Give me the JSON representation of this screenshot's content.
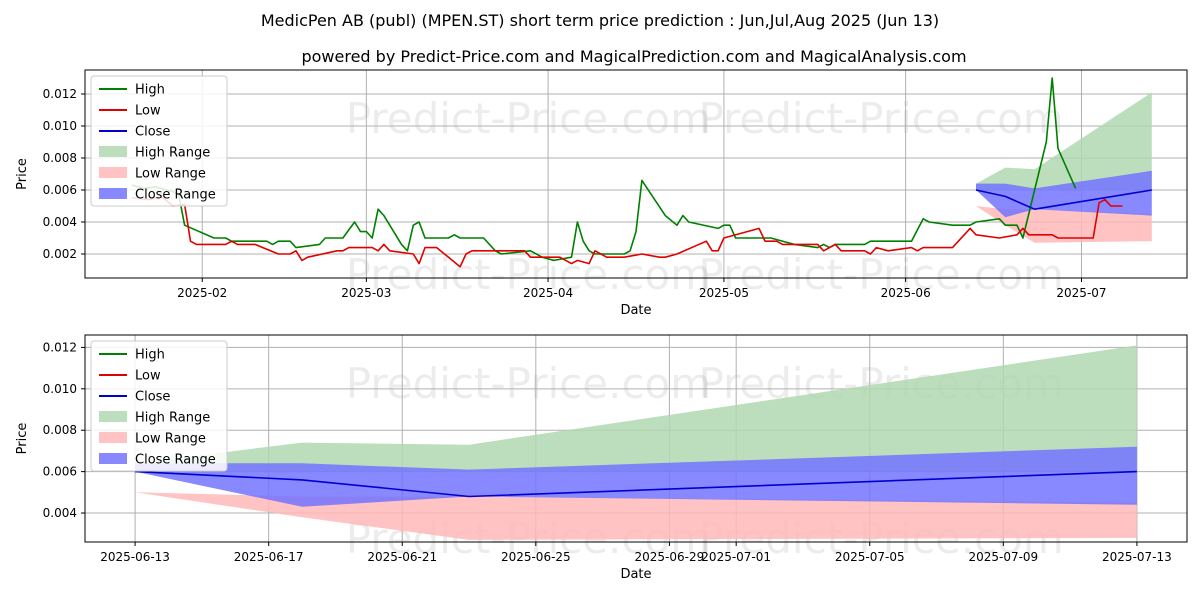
{
  "chart_title": "MedicPen AB (publ) (MPEN.ST) short term price prediction : Jun,Jul,Aug 2025 (Jun 13)",
  "chart_subtitle": "powered by Predict-Price.com and MagicalPrediction.com and MagicalAnalysis.com",
  "watermark": "Predict-Price.com",
  "colors": {
    "high": "#008000",
    "low": "#e00000",
    "close": "#0000d0",
    "high_range": "#b2d8b2",
    "low_range": "#ffb8b8",
    "close_range": "#7373ff"
  },
  "chart_data": [
    {
      "type": "line",
      "panel": "top",
      "xlabel": "Date",
      "ylabel": "Price",
      "xlim": [
        "2025-01-12",
        "2025-07-19"
      ],
      "ylim": [
        0.0005,
        0.0135
      ],
      "grid": true,
      "legend": "top-left",
      "x_ticks": [
        "2025-02",
        "2025-03",
        "2025-04",
        "2025-05",
        "2025-06",
        "2025-07"
      ],
      "x_tick_dates": [
        "2025-02-01",
        "2025-03-01",
        "2025-04-01",
        "2025-05-01",
        "2025-06-01",
        "2025-07-01"
      ],
      "y_ticks": [
        "0.002",
        "0.004",
        "0.006",
        "0.008",
        "0.010",
        "0.012"
      ],
      "y_tick_values": [
        0.002,
        0.004,
        0.006,
        0.008,
        0.01,
        0.012
      ],
      "legend_entries": [
        "High",
        "Low",
        "Close",
        "High Range",
        "Low Range",
        "Close Range"
      ],
      "series": [
        {
          "name": "High",
          "points": [
            [
              "2025-01-20",
              0.0063
            ],
            [
              "2025-01-22",
              0.0061
            ],
            [
              "2025-01-24",
              0.0062
            ],
            [
              "2025-01-27",
              0.0059
            ],
            [
              "2025-01-28",
              0.0057
            ],
            [
              "2025-01-29",
              0.0038
            ],
            [
              "2025-02-03",
              0.003
            ],
            [
              "2025-02-05",
              0.003
            ],
            [
              "2025-02-06",
              0.0028
            ],
            [
              "2025-02-12",
              0.0028
            ],
            [
              "2025-02-13",
              0.0026
            ],
            [
              "2025-02-14",
              0.0028
            ],
            [
              "2025-02-16",
              0.0028
            ],
            [
              "2025-02-17",
              0.0024
            ],
            [
              "2025-02-21",
              0.0026
            ],
            [
              "2025-02-22",
              0.003
            ],
            [
              "2025-02-25",
              0.003
            ],
            [
              "2025-02-27",
              0.004
            ],
            [
              "2025-02-28",
              0.0034
            ],
            [
              "2025-03-01",
              0.0034
            ],
            [
              "2025-03-02",
              0.003
            ],
            [
              "2025-03-03",
              0.0048
            ],
            [
              "2025-03-04",
              0.0044
            ],
            [
              "2025-03-07",
              0.0026
            ],
            [
              "2025-03-08",
              0.0022
            ],
            [
              "2025-03-09",
              0.0038
            ],
            [
              "2025-03-10",
              0.004
            ],
            [
              "2025-03-11",
              0.003
            ],
            [
              "2025-03-14",
              0.003
            ],
            [
              "2025-03-15",
              0.003
            ],
            [
              "2025-03-16",
              0.0032
            ],
            [
              "2025-03-17",
              0.003
            ],
            [
              "2025-03-21",
              0.003
            ],
            [
              "2025-03-23",
              0.0022
            ],
            [
              "2025-03-24",
              0.002
            ],
            [
              "2025-03-29",
              0.0022
            ],
            [
              "2025-03-31",
              0.0018
            ],
            [
              "2025-04-02",
              0.0016
            ],
            [
              "2025-04-05",
              0.0018
            ],
            [
              "2025-04-06",
              0.004
            ],
            [
              "2025-04-07",
              0.0028
            ],
            [
              "2025-04-08",
              0.0022
            ],
            [
              "2025-04-09",
              0.002
            ],
            [
              "2025-04-14",
              0.002
            ],
            [
              "2025-04-15",
              0.0022
            ],
            [
              "2025-04-16",
              0.0034
            ],
            [
              "2025-04-17",
              0.0066
            ],
            [
              "2025-04-21",
              0.0044
            ],
            [
              "2025-04-23",
              0.0038
            ],
            [
              "2025-04-24",
              0.0044
            ],
            [
              "2025-04-25",
              0.004
            ],
            [
              "2025-04-30",
              0.0036
            ],
            [
              "2025-05-01",
              0.0038
            ],
            [
              "2025-05-02",
              0.0038
            ],
            [
              "2025-05-03",
              0.003
            ],
            [
              "2025-05-09",
              0.003
            ],
            [
              "2025-05-13",
              0.0026
            ],
            [
              "2025-05-17",
              0.0024
            ],
            [
              "2025-05-18",
              0.0026
            ],
            [
              "2025-05-19",
              0.0024
            ],
            [
              "2025-05-20",
              0.0026
            ],
            [
              "2025-05-25",
              0.0026
            ],
            [
              "2025-05-26",
              0.0028
            ],
            [
              "2025-06-02",
              0.0028
            ],
            [
              "2025-06-04",
              0.0042
            ],
            [
              "2025-06-05",
              0.004
            ],
            [
              "2025-06-09",
              0.0038
            ],
            [
              "2025-06-12",
              0.0038
            ],
            [
              "2025-06-13",
              0.004
            ],
            [
              "2025-06-17",
              0.0042
            ],
            [
              "2025-06-18",
              0.0038
            ],
            [
              "2025-06-20",
              0.0038
            ],
            [
              "2025-06-21",
              0.003
            ],
            [
              "2025-06-25",
              0.009
            ],
            [
              "2025-06-26",
              0.013
            ],
            [
              "2025-06-27",
              0.0086
            ],
            [
              "2025-06-30",
              0.0061
            ]
          ]
        },
        {
          "name": "Low",
          "points": [
            [
              "2025-01-20",
              0.0055
            ],
            [
              "2025-01-23",
              0.0054
            ],
            [
              "2025-01-25",
              0.0056
            ],
            [
              "2025-01-27",
              0.005
            ],
            [
              "2025-01-29",
              0.0051
            ],
            [
              "2025-01-30",
              0.0028
            ],
            [
              "2025-01-31",
              0.0026
            ],
            [
              "2025-02-05",
              0.0026
            ],
            [
              "2025-02-06",
              0.0028
            ],
            [
              "2025-02-07",
              0.0026
            ],
            [
              "2025-02-10",
              0.0026
            ],
            [
              "2025-02-14",
              0.002
            ],
            [
              "2025-02-16",
              0.002
            ],
            [
              "2025-02-17",
              0.0022
            ],
            [
              "2025-02-18",
              0.0016
            ],
            [
              "2025-02-19",
              0.0018
            ],
            [
              "2025-02-24",
              0.0022
            ],
            [
              "2025-02-25",
              0.0022
            ],
            [
              "2025-02-26",
              0.0024
            ],
            [
              "2025-03-02",
              0.0024
            ],
            [
              "2025-03-03",
              0.0022
            ],
            [
              "2025-03-04",
              0.0026
            ],
            [
              "2025-03-05",
              0.0022
            ],
            [
              "2025-03-09",
              0.002
            ],
            [
              "2025-03-10",
              0.0014
            ],
            [
              "2025-03-11",
              0.0024
            ],
            [
              "2025-03-13",
              0.0024
            ],
            [
              "2025-03-17",
              0.0012
            ],
            [
              "2025-03-18",
              0.002
            ],
            [
              "2025-03-19",
              0.0022
            ],
            [
              "2025-03-28",
              0.0022
            ],
            [
              "2025-03-29",
              0.0018
            ],
            [
              "2025-04-03",
              0.0018
            ],
            [
              "2025-04-05",
              0.0014
            ],
            [
              "2025-04-06",
              0.0016
            ],
            [
              "2025-04-08",
              0.0014
            ],
            [
              "2025-04-09",
              0.0022
            ],
            [
              "2025-04-11",
              0.0018
            ],
            [
              "2025-04-14",
              0.0018
            ],
            [
              "2025-04-17",
              0.002
            ],
            [
              "2025-04-20",
              0.0018
            ],
            [
              "2025-04-21",
              0.0018
            ],
            [
              "2025-04-23",
              0.002
            ],
            [
              "2025-04-28",
              0.0028
            ],
            [
              "2025-04-29",
              0.0022
            ],
            [
              "2025-04-30",
              0.0022
            ],
            [
              "2025-05-01",
              0.003
            ],
            [
              "2025-05-07",
              0.0036
            ],
            [
              "2025-05-08",
              0.0028
            ],
            [
              "2025-05-10",
              0.0028
            ],
            [
              "2025-05-11",
              0.0026
            ],
            [
              "2025-05-17",
              0.0026
            ],
            [
              "2025-05-18",
              0.0022
            ],
            [
              "2025-05-20",
              0.0026
            ],
            [
              "2025-05-21",
              0.0022
            ],
            [
              "2025-05-25",
              0.0022
            ],
            [
              "2025-05-26",
              0.002
            ],
            [
              "2025-05-27",
              0.0024
            ],
            [
              "2025-05-29",
              0.0022
            ],
            [
              "2025-06-02",
              0.0024
            ],
            [
              "2025-06-03",
              0.0022
            ],
            [
              "2025-06-04",
              0.0024
            ],
            [
              "2025-06-09",
              0.0024
            ],
            [
              "2025-06-12",
              0.0036
            ],
            [
              "2025-06-13",
              0.0032
            ],
            [
              "2025-06-17",
              0.003
            ],
            [
              "2025-06-20",
              0.0032
            ],
            [
              "2025-06-21",
              0.0036
            ],
            [
              "2025-06-22",
              0.0032
            ],
            [
              "2025-06-26",
              0.0032
            ],
            [
              "2025-06-27",
              0.003
            ],
            [
              "2025-07-03",
              0.003
            ],
            [
              "2025-07-04",
              0.0052
            ],
            [
              "2025-07-05",
              0.0054
            ],
            [
              "2025-07-06",
              0.005
            ],
            [
              "2025-07-08",
              0.005
            ]
          ]
        },
        {
          "name": "Close",
          "points": [
            [
              "2025-06-13",
              0.006
            ],
            [
              "2025-06-18",
              0.0056
            ],
            [
              "2025-06-23",
              0.0048
            ],
            [
              "2025-07-13",
              0.006
            ]
          ]
        }
      ],
      "ranges": [
        {
          "name": "High Range",
          "upper": [
            [
              "2025-06-13",
              0.0064
            ],
            [
              "2025-06-18",
              0.0074
            ],
            [
              "2025-06-23",
              0.0073
            ],
            [
              "2025-07-13",
              0.0121
            ]
          ],
          "lower": [
            [
              "2025-06-13",
              0.006
            ],
            [
              "2025-06-18",
              0.006
            ],
            [
              "2025-06-23",
              0.006
            ],
            [
              "2025-07-13",
              0.006
            ]
          ]
        },
        {
          "name": "Low Range",
          "upper": [
            [
              "2025-06-13",
              0.005
            ],
            [
              "2025-06-18",
              0.0048
            ],
            [
              "2025-06-23",
              0.0048
            ],
            [
              "2025-07-13",
              0.0045
            ]
          ],
          "lower": [
            [
              "2025-06-13",
              0.005
            ],
            [
              "2025-06-18",
              0.0038
            ],
            [
              "2025-06-23",
              0.0027
            ],
            [
              "2025-07-13",
              0.0028
            ]
          ]
        },
        {
          "name": "Close Range",
          "upper": [
            [
              "2025-06-13",
              0.0064
            ],
            [
              "2025-06-18",
              0.0064
            ],
            [
              "2025-06-23",
              0.0061
            ],
            [
              "2025-07-13",
              0.0072
            ]
          ],
          "lower": [
            [
              "2025-06-13",
              0.006
            ],
            [
              "2025-06-18",
              0.0043
            ],
            [
              "2025-06-23",
              0.0048
            ],
            [
              "2025-07-13",
              0.0044
            ]
          ]
        }
      ]
    },
    {
      "type": "line",
      "panel": "bottom",
      "xlabel": "Date",
      "ylabel": "Price",
      "xlim": [
        "2025-06-11.5",
        "2025-07-14.5"
      ],
      "ylim": [
        0.0026,
        0.0126
      ],
      "grid": true,
      "legend": "top-left",
      "x_ticks": [
        "2025-06-13",
        "2025-06-17",
        "2025-06-21",
        "2025-06-25",
        "2025-06-29",
        "2025-07-01",
        "2025-07-05",
        "2025-07-09",
        "2025-07-13"
      ],
      "x_tick_dates": [
        "2025-06-13",
        "2025-06-17",
        "2025-06-21",
        "2025-06-25",
        "2025-06-29",
        "2025-07-01",
        "2025-07-05",
        "2025-07-09",
        "2025-07-13"
      ],
      "y_ticks": [
        "0.004",
        "0.006",
        "0.008",
        "0.010",
        "0.012"
      ],
      "y_tick_values": [
        0.004,
        0.006,
        0.008,
        0.01,
        0.012
      ],
      "legend_entries": [
        "High",
        "Low",
        "Close",
        "High Range",
        "Low Range",
        "Close Range"
      ],
      "series": [
        {
          "name": "Close",
          "points": [
            [
              "2025-06-13",
              0.006
            ],
            [
              "2025-06-18",
              0.0056
            ],
            [
              "2025-06-23",
              0.0048
            ],
            [
              "2025-07-13",
              0.006
            ]
          ]
        }
      ],
      "ranges": [
        {
          "name": "High Range",
          "upper": [
            [
              "2025-06-13",
              0.0064
            ],
            [
              "2025-06-18",
              0.0074
            ],
            [
              "2025-06-23",
              0.0073
            ],
            [
              "2025-07-13",
              0.0121
            ]
          ],
          "lower": [
            [
              "2025-06-13",
              0.006
            ],
            [
              "2025-06-18",
              0.006
            ],
            [
              "2025-06-23",
              0.006
            ],
            [
              "2025-07-13",
              0.006
            ]
          ]
        },
        {
          "name": "Low Range",
          "upper": [
            [
              "2025-06-13",
              0.005
            ],
            [
              "2025-06-18",
              0.0048
            ],
            [
              "2025-06-23",
              0.0048
            ],
            [
              "2025-07-13",
              0.0045
            ]
          ],
          "lower": [
            [
              "2025-06-13",
              0.005
            ],
            [
              "2025-06-18",
              0.0038
            ],
            [
              "2025-06-23",
              0.0027
            ],
            [
              "2025-07-13",
              0.0028
            ]
          ]
        },
        {
          "name": "Close Range",
          "upper": [
            [
              "2025-06-13",
              0.0064
            ],
            [
              "2025-06-18",
              0.0064
            ],
            [
              "2025-06-23",
              0.0061
            ],
            [
              "2025-07-13",
              0.0072
            ]
          ],
          "lower": [
            [
              "2025-06-13",
              0.006
            ],
            [
              "2025-06-18",
              0.0043
            ],
            [
              "2025-06-23",
              0.0048
            ],
            [
              "2025-07-13",
              0.0044
            ]
          ]
        }
      ]
    }
  ]
}
